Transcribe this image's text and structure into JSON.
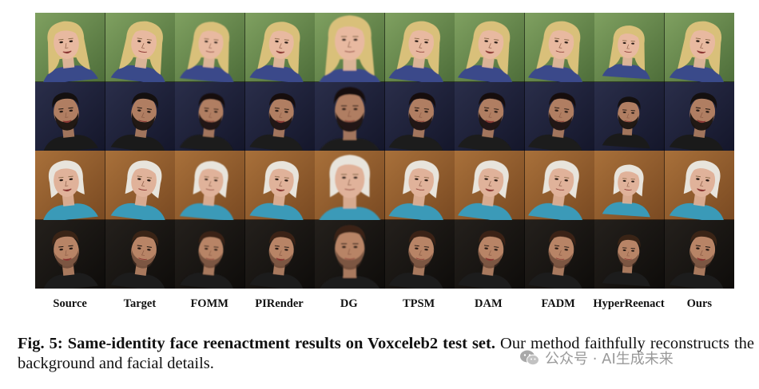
{
  "figure": {
    "columns": [
      "Source",
      "Target",
      "FOMM",
      "PIRender",
      "DG",
      "TPSM",
      "DAM",
      "FADM",
      "HyperReenact",
      "Ours"
    ],
    "rows": [
      {
        "name": "blonde-woman",
        "bg": "#4e6e3a",
        "bg2": "#7fa060",
        "hair": "#d9c07a",
        "skin": "#e8b9a0",
        "shirt": "#3a4a8a"
      },
      {
        "name": "bearded-man",
        "bg": "#14162a",
        "bg2": "#2a2e4a",
        "hair": "#141010",
        "skin": "#b07e62",
        "shirt": "#1a1a1a"
      },
      {
        "name": "older-woman",
        "bg": "#7a4a22",
        "bg2": "#a8703a",
        "hair": "#e8e4dc",
        "skin": "#e0b29a",
        "shirt": "#3a9ab8"
      },
      {
        "name": "young-man",
        "bg": "#0e0c0a",
        "bg2": "#24201c",
        "hair": "#3a2416",
        "skin": "#b88466",
        "shirt": "#1c1c1c"
      }
    ]
  },
  "caption": {
    "label": "Fig. 5: Same-identity face reenactment results on Voxceleb2 test set.",
    "text": " Our method faithfully reconstructs the background and facial details."
  },
  "watermark": {
    "text": "公众号 · AI生成未来"
  }
}
